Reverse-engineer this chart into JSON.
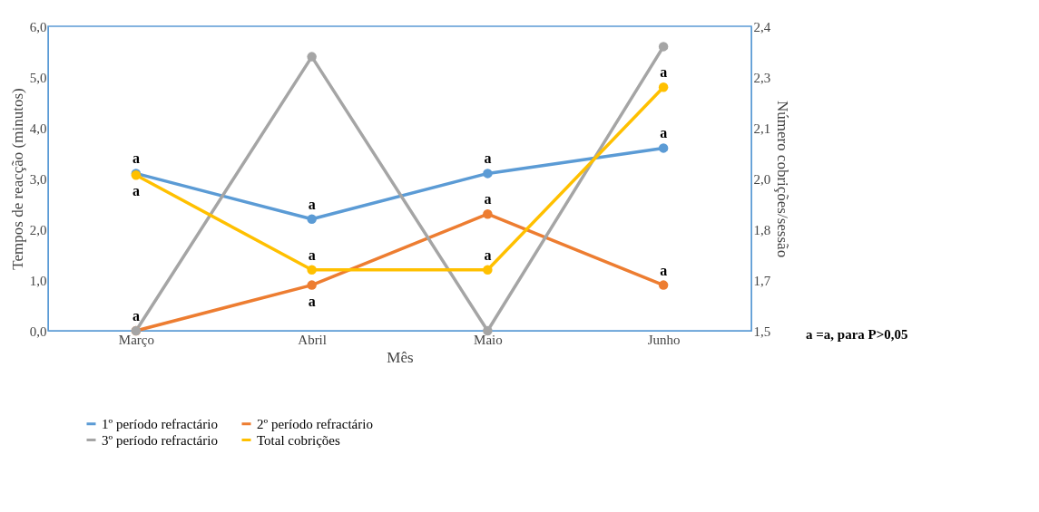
{
  "chart_data": {
    "type": "line",
    "xlabel": "Mês",
    "ylabel": "Tempos de reacção (minutos)",
    "y2label": "Número cobrições/sessão",
    "categories": [
      "Março",
      "Abril",
      "Maio",
      "Junho"
    ],
    "series": [
      {
        "name": "1º período refractário",
        "color": "#5b9bd5",
        "values": [
          3.1,
          2.2,
          3.1,
          3.6
        ],
        "value_labels": [
          "a",
          "a",
          "a",
          "a"
        ]
      },
      {
        "name": "2º período refractário",
        "color": "#ed7d31",
        "values": [
          0,
          0.9,
          2.3,
          0.9
        ],
        "value_labels": [
          "a",
          "a",
          "a",
          "a"
        ]
      },
      {
        "name": "3º período refractário",
        "color": "#a5a5a5",
        "values": [
          0,
          5.4,
          0,
          5.6
        ]
      },
      {
        "name": "Total cobrições",
        "color": "#ffc000",
        "values": [
          1.96,
          1.68,
          1.68,
          2.22
        ],
        "axis": "y2",
        "value_labels": [
          "a",
          "a",
          "a",
          "a"
        ]
      }
    ],
    "ylim": [
      0,
      6
    ],
    "yticks": [
      {
        "value": 0,
        "label": "0,0"
      },
      {
        "value": 1,
        "label": "1,0"
      },
      {
        "value": 2,
        "label": "2,0"
      },
      {
        "value": 3,
        "label": "3,0"
      },
      {
        "value": 4,
        "label": "4,0"
      },
      {
        "value": 5,
        "label": "5,0"
      },
      {
        "value": 6,
        "label": "6,0"
      }
    ],
    "y2lim": [
      1.5,
      2.4
    ],
    "y2ticks": [
      {
        "value": 1.5,
        "label": "1,5"
      },
      {
        "value": 1.65,
        "label": "1,7"
      },
      {
        "value": 1.8,
        "label": "1,8"
      },
      {
        "value": 1.95,
        "label": "2,0"
      },
      {
        "value": 2.1,
        "label": "2,1"
      },
      {
        "value": 2.25,
        "label": "2,3"
      },
      {
        "value": 2.4,
        "label": "2,4"
      }
    ],
    "annotations": [
      "a =a, para P>0,05"
    ],
    "marker": "circle",
    "line_style": "solid",
    "grid": false,
    "legend": "bottom"
  }
}
